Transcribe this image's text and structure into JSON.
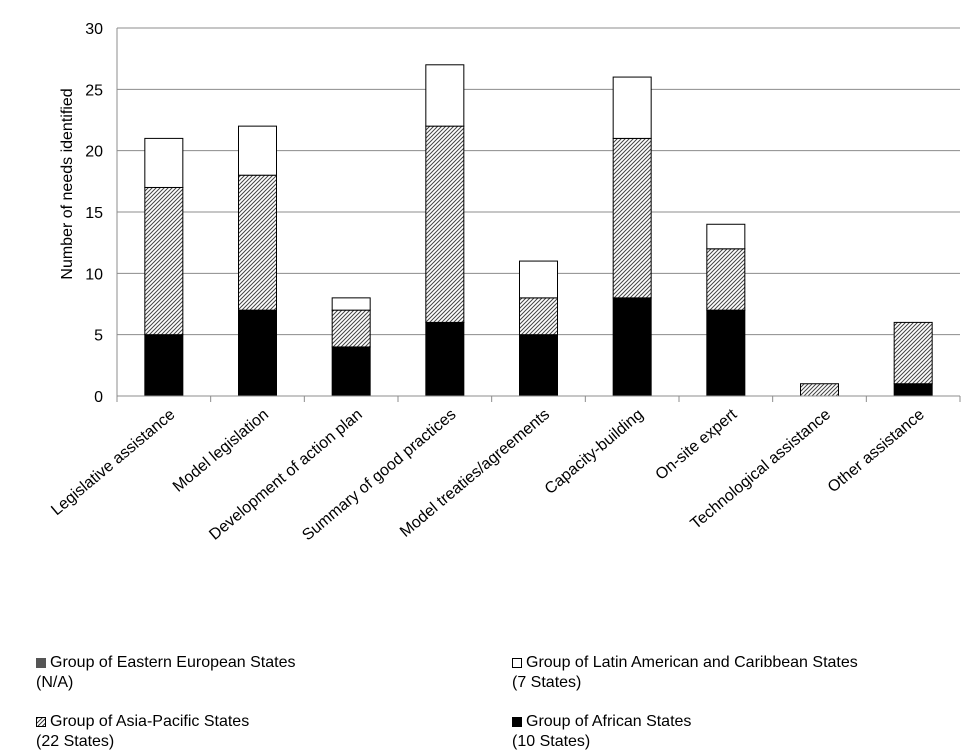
{
  "chart_data": {
    "type": "bar",
    "stacked": true,
    "ylabel": "Number of needs identified",
    "ylim": [
      0,
      30
    ],
    "yticks": [
      0,
      5,
      10,
      15,
      20,
      25,
      30
    ],
    "grid": true,
    "legend_position": "bottom",
    "categories": [
      "Legislative assistance",
      "Model legislation",
      "Development of action plan",
      "Summary of good practices",
      "Model treaties/agreements",
      "Capacity-building",
      "On-site expert",
      "Technological assistance",
      "Other assistance"
    ],
    "series": [
      {
        "name": "Group of African States",
        "name_sub": "(10 States)",
        "color": "#000000",
        "pattern": "solid",
        "values": [
          5,
          7,
          4,
          6,
          5,
          8,
          7,
          0,
          1
        ]
      },
      {
        "name": "Group of Asia-Pacific States",
        "name_sub": "(22 States)",
        "color": "#555555",
        "pattern": "hatch",
        "values": [
          12,
          11,
          3,
          16,
          3,
          13,
          5,
          1,
          5
        ]
      },
      {
        "name": "Group of Latin American and Caribbean States",
        "name_sub": "(7 States)",
        "color": "#ffffff",
        "pattern": "empty",
        "values": [
          4,
          4,
          1,
          5,
          3,
          5,
          2,
          0,
          0
        ]
      },
      {
        "name": "Group of Eastern European States",
        "name_sub": "(N/A)",
        "color": "#555555",
        "pattern": "solid-gray",
        "values": [
          0,
          0,
          0,
          0,
          0,
          0,
          0,
          0,
          0
        ]
      }
    ]
  }
}
